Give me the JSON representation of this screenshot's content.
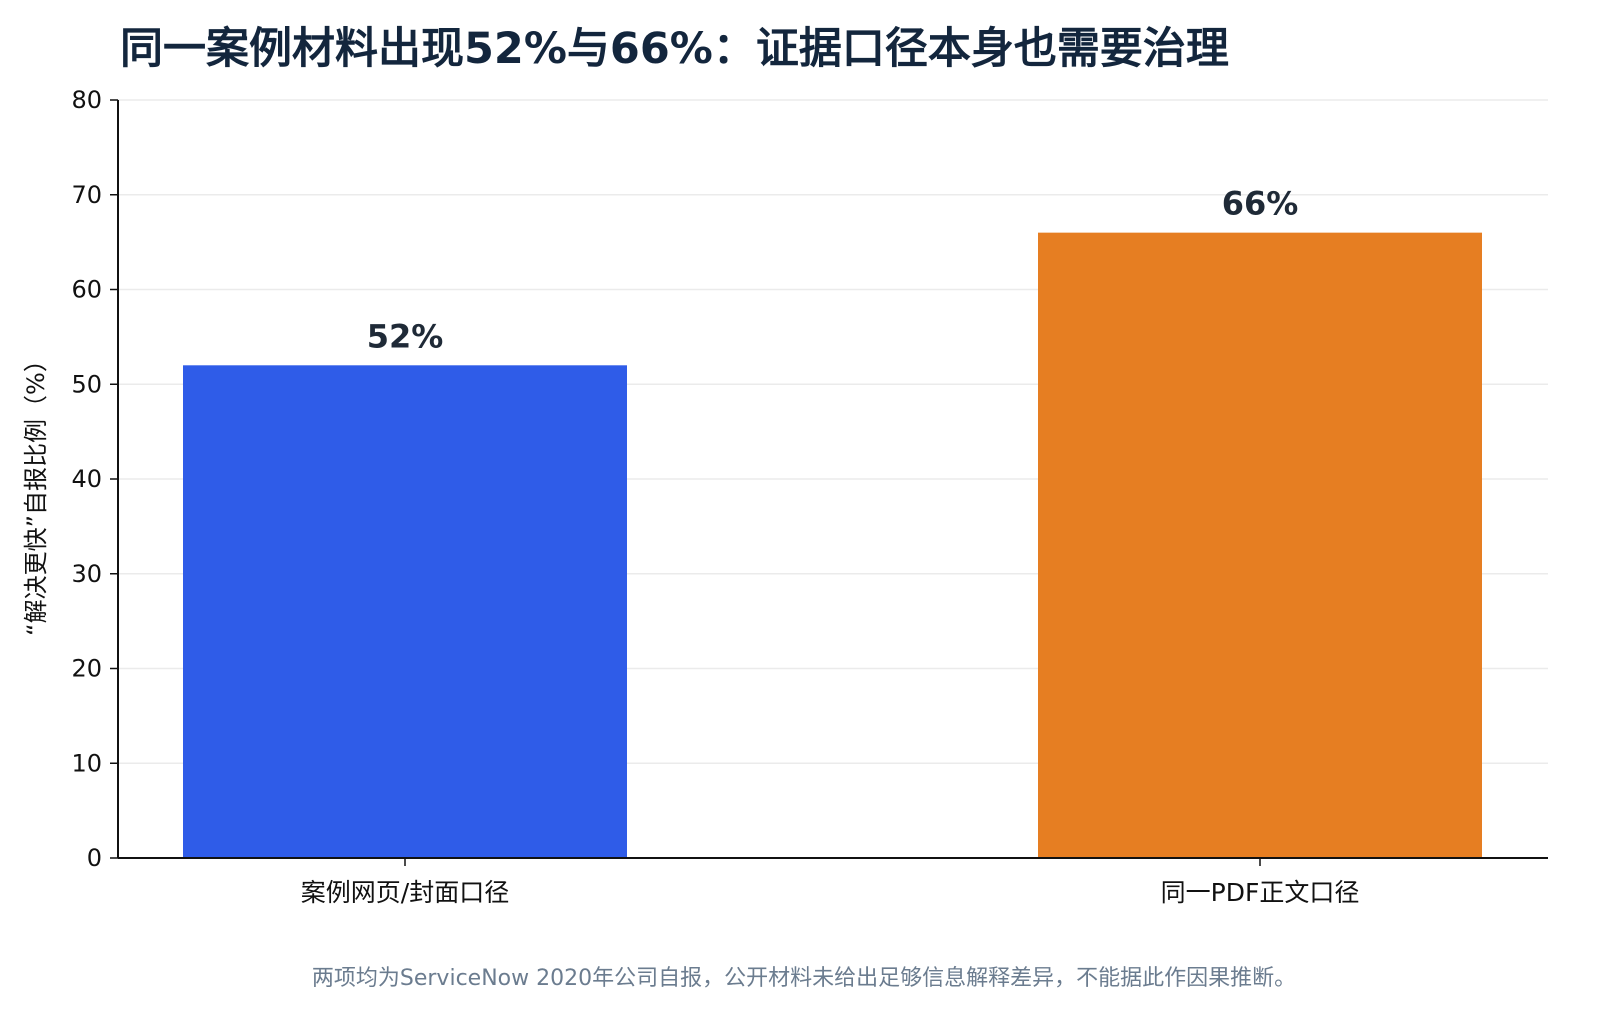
{
  "chart_data": {
    "type": "bar",
    "title": "同一案例材料出现52%与66%：证据口径本身也需要治理",
    "xlabel": "",
    "ylabel": "“解决更快”自报比例（%）",
    "categories": [
      "案例网页/封面口径",
      "同一PDF正文口径"
    ],
    "values": [
      52,
      66
    ],
    "value_labels": [
      "52%",
      "66%"
    ],
    "colors": [
      "#2f5ce8",
      "#e67e22"
    ],
    "ylim": [
      0,
      80
    ],
    "yticks": [
      0,
      10,
      20,
      30,
      40,
      50,
      60,
      70,
      80
    ],
    "grid": "horizontal",
    "legend": "none"
  },
  "footnote": "两项均为ServiceNow 2020年公司自报，公开材料未给出足够信息解释差异，不能据此作因果推断。"
}
